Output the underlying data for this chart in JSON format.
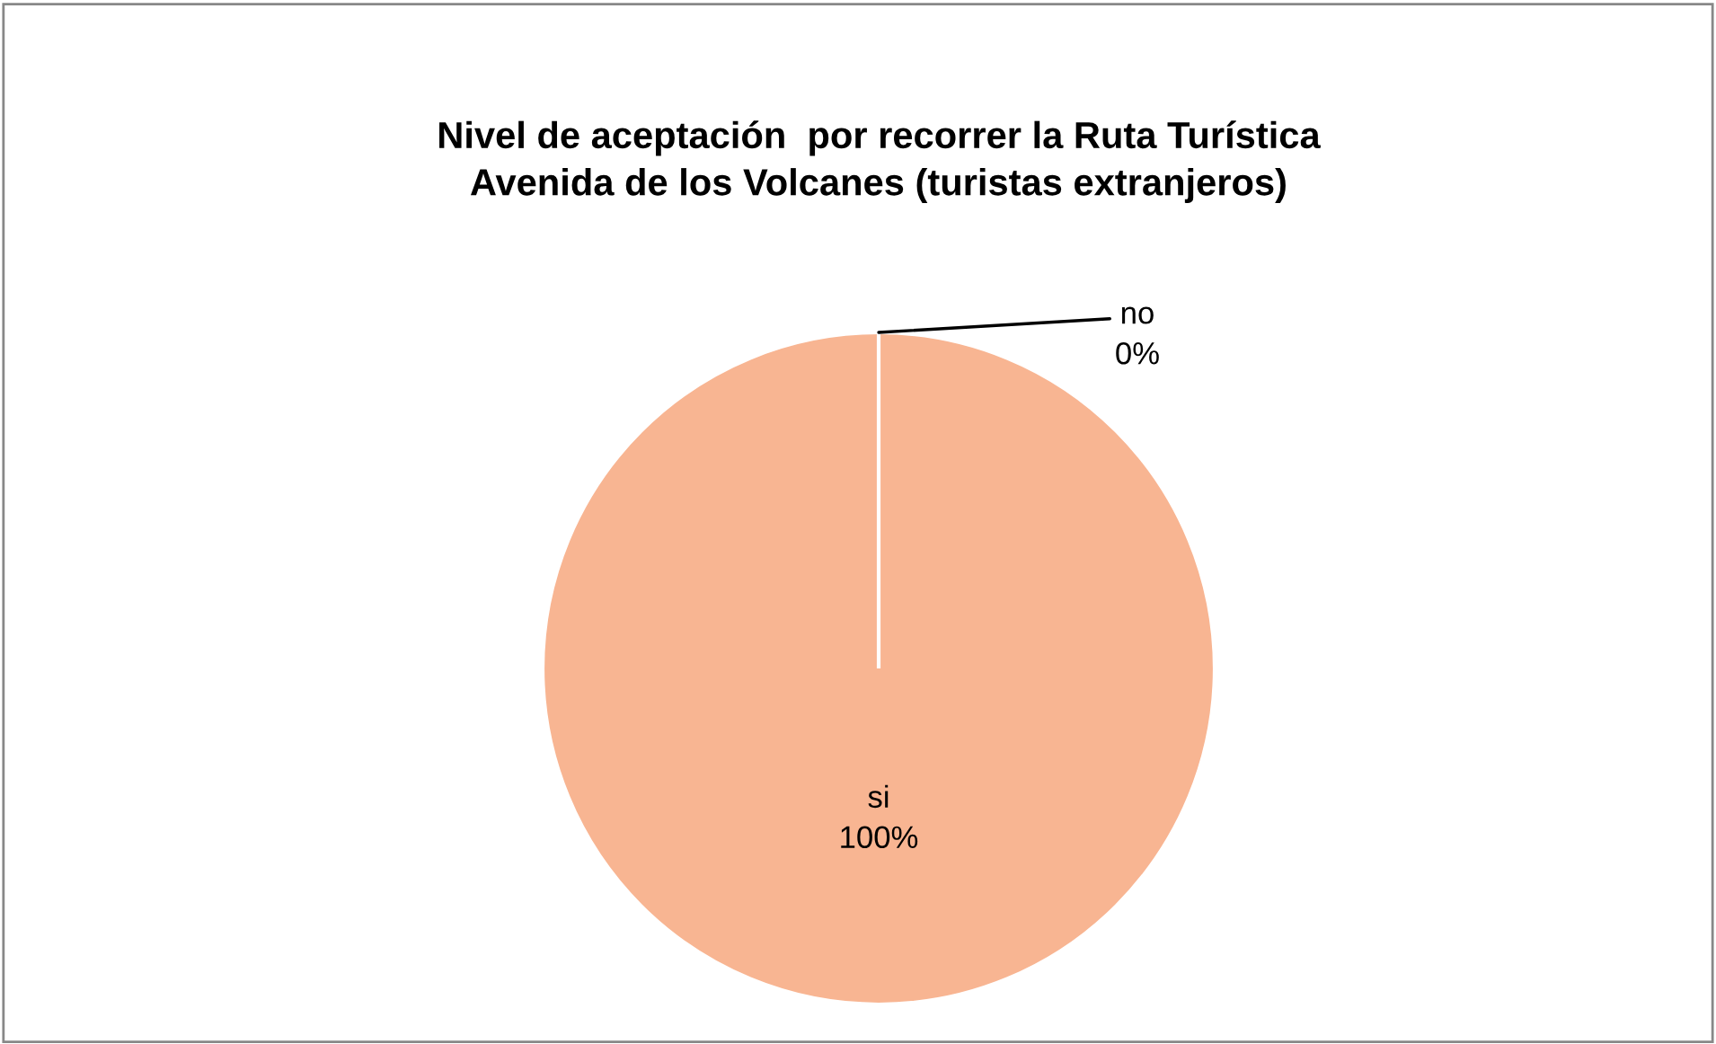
{
  "chart_data": {
    "type": "pie",
    "title": "Nivel de aceptación  por recorrer la Ruta Turística\nAvenida de los Volcanes (turistas extranjeros)",
    "categories": [
      "si",
      "no"
    ],
    "values": [
      100,
      0
    ],
    "colors": [
      "#f8b592",
      "#4f81bd"
    ],
    "value_labels": [
      "100%",
      "0%"
    ],
    "legend": false
  }
}
